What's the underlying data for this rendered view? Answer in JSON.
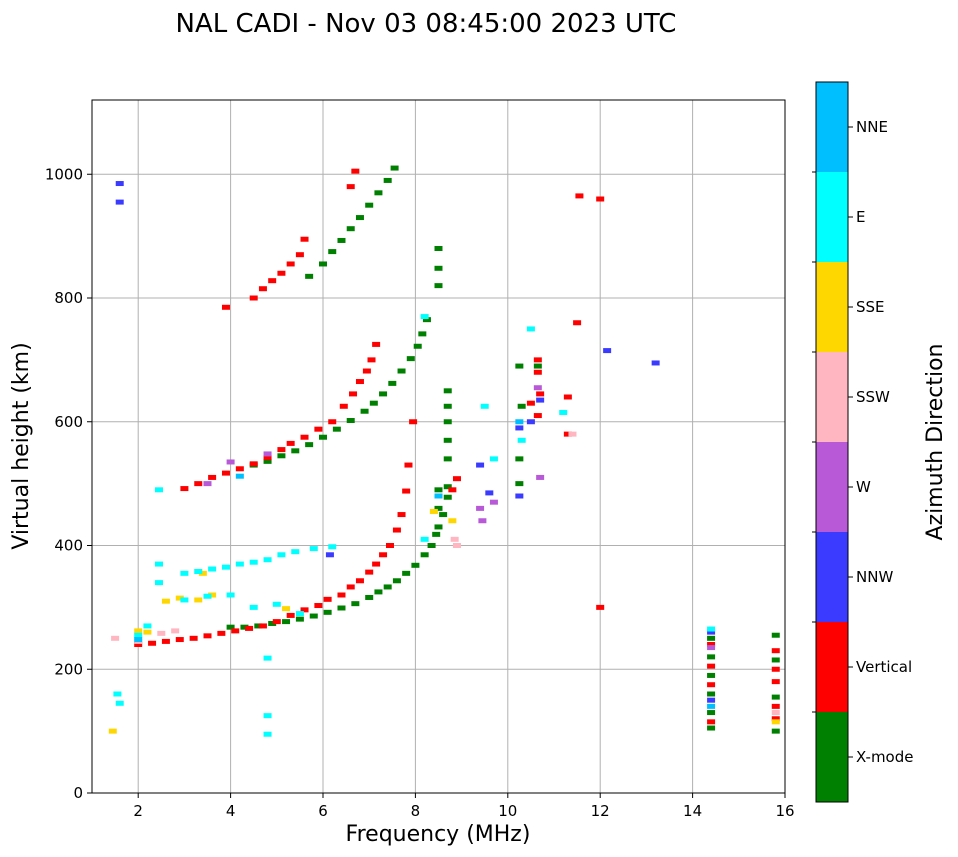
{
  "chart_data": {
    "type": "scatter",
    "title": "NAL CADI - Nov 03 08:45:00 2023 UTC",
    "xlabel": "Frequency (MHz)",
    "ylabel": "Virtual height (km)",
    "xlim": [
      1,
      16
    ],
    "ylim": [
      0,
      1120
    ],
    "xticks": [
      2,
      4,
      6,
      8,
      10,
      12,
      14,
      16
    ],
    "yticks": [
      0,
      200,
      400,
      600,
      800,
      1000
    ],
    "grid": true,
    "colorbar": {
      "label": "Azimuth Direction",
      "entries": [
        {
          "name": "X-mode",
          "color": "#008000"
        },
        {
          "name": "Vertical",
          "color": "#ff0000"
        },
        {
          "name": "NNW",
          "color": "#3b3bff"
        },
        {
          "name": "W",
          "color": "#b85ad8"
        },
        {
          "name": "SSW",
          "color": "#ffb6c1"
        },
        {
          "name": "SSE",
          "color": "#ffd700"
        },
        {
          "name": "E",
          "color": "#00ffff"
        },
        {
          "name": "NNE",
          "color": "#00bfff"
        }
      ]
    },
    "series": [
      {
        "name": "X-mode",
        "points": [
          [
            4.0,
            268
          ],
          [
            4.3,
            268
          ],
          [
            4.6,
            270
          ],
          [
            4.9,
            274
          ],
          [
            5.2,
            277
          ],
          [
            5.5,
            281
          ],
          [
            5.8,
            286
          ],
          [
            6.1,
            292
          ],
          [
            6.4,
            299
          ],
          [
            6.7,
            306
          ],
          [
            7.0,
            316
          ],
          [
            7.2,
            325
          ],
          [
            7.4,
            333
          ],
          [
            7.6,
            343
          ],
          [
            7.8,
            355
          ],
          [
            8.0,
            368
          ],
          [
            8.2,
            385
          ],
          [
            8.35,
            400
          ],
          [
            8.45,
            418
          ],
          [
            8.6,
            450
          ],
          [
            4.5,
            530
          ],
          [
            4.8,
            536
          ],
          [
            5.1,
            545
          ],
          [
            5.4,
            553
          ],
          [
            5.7,
            563
          ],
          [
            6.0,
            575
          ],
          [
            6.3,
            588
          ],
          [
            6.6,
            602
          ],
          [
            6.9,
            617
          ],
          [
            7.1,
            630
          ],
          [
            7.3,
            645
          ],
          [
            7.5,
            662
          ],
          [
            7.7,
            682
          ],
          [
            7.9,
            702
          ],
          [
            8.05,
            722
          ],
          [
            8.15,
            742
          ],
          [
            8.25,
            765
          ],
          [
            5.7,
            835
          ],
          [
            6.0,
            855
          ],
          [
            6.2,
            875
          ],
          [
            6.4,
            893
          ],
          [
            6.6,
            912
          ],
          [
            6.8,
            930
          ],
          [
            7.0,
            950
          ],
          [
            7.2,
            970
          ],
          [
            7.4,
            990
          ],
          [
            7.55,
            1010
          ],
          [
            8.5,
            430
          ],
          [
            8.5,
            460
          ],
          [
            8.5,
            490
          ],
          [
            8.7,
            478
          ],
          [
            8.7,
            495
          ],
          [
            8.7,
            540
          ],
          [
            8.7,
            570
          ],
          [
            8.7,
            600
          ],
          [
            8.7,
            625
          ],
          [
            8.7,
            650
          ],
          [
            8.5,
            820
          ],
          [
            8.5,
            848
          ],
          [
            8.5,
            880
          ],
          [
            10.25,
            500
          ],
          [
            10.25,
            540
          ],
          [
            10.3,
            625
          ],
          [
            10.25,
            690
          ],
          [
            10.65,
            690
          ],
          [
            14.4,
            105
          ],
          [
            14.4,
            130
          ],
          [
            14.4,
            160
          ],
          [
            14.4,
            190
          ],
          [
            14.4,
            220
          ],
          [
            14.4,
            250
          ],
          [
            15.8,
            100
          ],
          [
            15.8,
            155
          ],
          [
            15.8,
            215
          ],
          [
            15.8,
            255
          ]
        ]
      },
      {
        "name": "Vertical",
        "points": [
          [
            2.0,
            240
          ],
          [
            2.3,
            242
          ],
          [
            2.6,
            245
          ],
          [
            2.9,
            248
          ],
          [
            3.2,
            250
          ],
          [
            3.5,
            254
          ],
          [
            3.8,
            258
          ],
          [
            4.1,
            262
          ],
          [
            4.4,
            266
          ],
          [
            4.7,
            270
          ],
          [
            5.0,
            277
          ],
          [
            5.3,
            287
          ],
          [
            5.6,
            296
          ],
          [
            5.9,
            303
          ],
          [
            6.1,
            313
          ],
          [
            6.4,
            320
          ],
          [
            6.6,
            333
          ],
          [
            6.8,
            343
          ],
          [
            7.0,
            357
          ],
          [
            7.15,
            370
          ],
          [
            7.3,
            385
          ],
          [
            7.45,
            400
          ],
          [
            7.6,
            425
          ],
          [
            7.7,
            450
          ],
          [
            7.8,
            488
          ],
          [
            7.85,
            530
          ],
          [
            7.95,
            600
          ],
          [
            3.0,
            492
          ],
          [
            3.3,
            500
          ],
          [
            3.6,
            510
          ],
          [
            3.9,
            517
          ],
          [
            4.2,
            524
          ],
          [
            4.5,
            532
          ],
          [
            4.8,
            542
          ],
          [
            5.1,
            555
          ],
          [
            5.3,
            565
          ],
          [
            5.6,
            575
          ],
          [
            5.9,
            588
          ],
          [
            6.2,
            600
          ],
          [
            6.45,
            625
          ],
          [
            6.65,
            645
          ],
          [
            6.8,
            665
          ],
          [
            6.95,
            682
          ],
          [
            7.05,
            700
          ],
          [
            7.15,
            725
          ],
          [
            3.9,
            785
          ],
          [
            4.5,
            800
          ],
          [
            4.7,
            815
          ],
          [
            4.9,
            828
          ],
          [
            5.1,
            840
          ],
          [
            5.3,
            855
          ],
          [
            5.5,
            870
          ],
          [
            5.6,
            895
          ],
          [
            6.6,
            980
          ],
          [
            6.7,
            1005
          ],
          [
            8.8,
            490
          ],
          [
            8.9,
            508
          ],
          [
            10.65,
            700
          ],
          [
            10.65,
            680
          ],
          [
            10.65,
            610
          ],
          [
            10.5,
            630
          ],
          [
            10.7,
            645
          ],
          [
            11.3,
            640
          ],
          [
            11.3,
            580
          ],
          [
            11.5,
            760
          ],
          [
            11.55,
            965
          ],
          [
            12.0,
            960
          ],
          [
            12.0,
            300
          ],
          [
            14.4,
            115
          ],
          [
            14.4,
            175
          ],
          [
            14.4,
            205
          ],
          [
            14.4,
            240
          ],
          [
            15.8,
            120
          ],
          [
            15.8,
            140
          ],
          [
            15.8,
            180
          ],
          [
            15.8,
            200
          ],
          [
            15.8,
            230
          ]
        ]
      },
      {
        "name": "NNW",
        "points": [
          [
            1.6,
            985
          ],
          [
            1.6,
            955
          ],
          [
            6.15,
            385
          ],
          [
            9.4,
            530
          ],
          [
            9.6,
            485
          ],
          [
            10.25,
            480
          ],
          [
            10.25,
            590
          ],
          [
            10.5,
            600
          ],
          [
            10.7,
            635
          ],
          [
            12.15,
            715
          ],
          [
            13.2,
            695
          ],
          [
            14.4,
            150
          ],
          [
            14.4,
            260
          ]
        ]
      },
      {
        "name": "W",
        "points": [
          [
            3.5,
            500
          ],
          [
            4.0,
            535
          ],
          [
            4.8,
            548
          ],
          [
            9.4,
            460
          ],
          [
            9.45,
            440
          ],
          [
            9.7,
            470
          ],
          [
            10.7,
            510
          ],
          [
            10.65,
            655
          ],
          [
            14.4,
            235
          ]
        ]
      },
      {
        "name": "SSW",
        "points": [
          [
            1.5,
            250
          ],
          [
            2.0,
            245
          ],
          [
            2.5,
            258
          ],
          [
            2.8,
            262
          ],
          [
            8.9,
            400
          ],
          [
            8.85,
            410
          ],
          [
            11.4,
            580
          ],
          [
            15.8,
            130
          ]
        ]
      },
      {
        "name": "SSE",
        "points": [
          [
            1.45,
            100
          ],
          [
            2.0,
            262
          ],
          [
            2.2,
            260
          ],
          [
            2.6,
            310
          ],
          [
            2.9,
            315
          ],
          [
            3.3,
            312
          ],
          [
            3.6,
            320
          ],
          [
            3.4,
            355
          ],
          [
            5.2,
            298
          ],
          [
            8.8,
            440
          ],
          [
            8.4,
            455
          ],
          [
            15.8,
            115
          ]
        ]
      },
      {
        "name": "E",
        "points": [
          [
            1.55,
            160
          ],
          [
            1.6,
            145
          ],
          [
            2.0,
            255
          ],
          [
            2.2,
            270
          ],
          [
            2.45,
            340
          ],
          [
            2.45,
            370
          ],
          [
            2.45,
            490
          ],
          [
            3.0,
            355
          ],
          [
            3.3,
            358
          ],
          [
            3.6,
            362
          ],
          [
            3.9,
            365
          ],
          [
            4.2,
            370
          ],
          [
            4.5,
            373
          ],
          [
            4.8,
            377
          ],
          [
            5.1,
            385
          ],
          [
            5.4,
            390
          ],
          [
            5.8,
            395
          ],
          [
            6.2,
            398
          ],
          [
            3.0,
            312
          ],
          [
            3.5,
            318
          ],
          [
            4.0,
            320
          ],
          [
            4.5,
            300
          ],
          [
            5.0,
            305
          ],
          [
            5.5,
            290
          ],
          [
            4.8,
            95
          ],
          [
            4.8,
            125
          ],
          [
            4.8,
            218
          ],
          [
            8.2,
            410
          ],
          [
            8.2,
            770
          ],
          [
            9.5,
            625
          ],
          [
            9.7,
            540
          ],
          [
            10.3,
            570
          ],
          [
            10.5,
            750
          ],
          [
            11.2,
            615
          ],
          [
            14.4,
            265
          ]
        ]
      },
      {
        "name": "NNE",
        "points": [
          [
            2.0,
            248
          ],
          [
            4.2,
            512
          ],
          [
            8.5,
            480
          ],
          [
            10.25,
            600
          ],
          [
            14.4,
            140
          ]
        ]
      }
    ]
  }
}
